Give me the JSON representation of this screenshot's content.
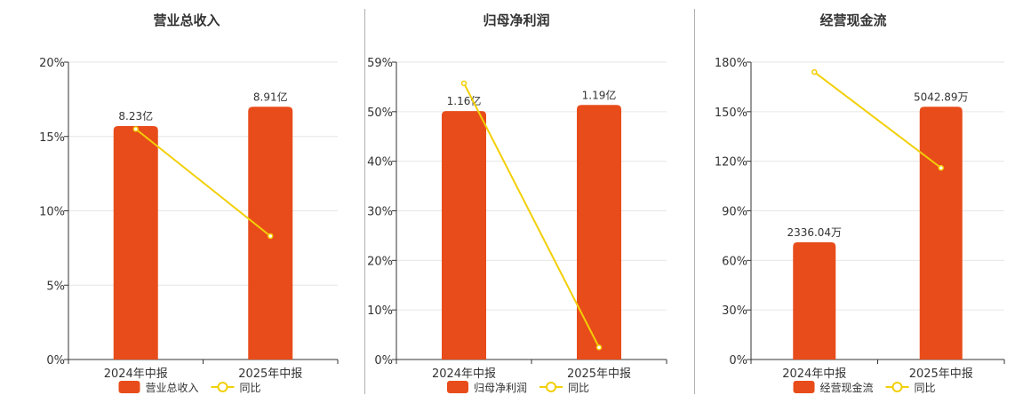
{
  "colors": {
    "bar": "#E84C1A",
    "line": "#F2CF07",
    "grid": "#e6e6e6",
    "axis": "#333333"
  },
  "chart_data": [
    {
      "type": "bar",
      "title": "营业总收入",
      "categories": [
        "2024年中报",
        "2025年中报"
      ],
      "yticks": [
        "0%",
        "5%",
        "10%",
        "15%",
        "20%"
      ],
      "ylim": [
        0,
        20
      ],
      "series": [
        {
          "name": "营业总收入",
          "type": "bar",
          "values": [
            15.7,
            17.0
          ],
          "labels": [
            "8.23亿",
            "8.91亿"
          ]
        },
        {
          "name": "同比",
          "type": "line",
          "values": [
            15.5,
            8.3
          ]
        }
      ],
      "legend": "bottom"
    },
    {
      "type": "bar",
      "title": "归母净利润",
      "categories": [
        "2024年中报",
        "2025年中报"
      ],
      "yticks": [
        "0%",
        "10%",
        "20%",
        "30%",
        "40%",
        "50%",
        "59%"
      ],
      "ylim": [
        0,
        59
      ],
      "series": [
        {
          "name": "归母净利润",
          "type": "bar",
          "values": [
            49.3,
            50.5
          ],
          "labels": [
            "1.16亿",
            "1.19亿"
          ]
        },
        {
          "name": "同比",
          "type": "line",
          "values": [
            54.8,
            2.4
          ]
        }
      ],
      "legend": "bottom"
    },
    {
      "type": "bar",
      "title": "经营现金流",
      "categories": [
        "2024年中报",
        "2025年中报"
      ],
      "yticks": [
        "0%",
        "30%",
        "60%",
        "90%",
        "120%",
        "150%",
        "180%"
      ],
      "ylim": [
        0,
        180
      ],
      "series": [
        {
          "name": "经营现金流",
          "type": "bar",
          "values": [
            71,
            153
          ],
          "labels": [
            "2336.04万",
            "5042.89万"
          ]
        },
        {
          "name": "同比",
          "type": "line",
          "values": [
            174,
            116
          ]
        }
      ],
      "legend": "bottom"
    }
  ]
}
